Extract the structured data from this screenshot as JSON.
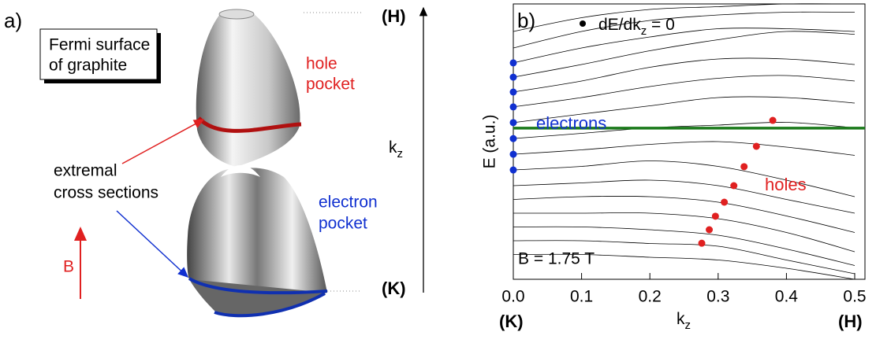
{
  "panel_a": {
    "label": "a)",
    "box_lines": [
      "Fermi surface",
      "of graphite"
    ],
    "hole_lines": [
      "hole",
      "pocket"
    ],
    "electron_lines": [
      "electron",
      "pocket"
    ],
    "cross_lines": [
      "extremal",
      "cross sections"
    ],
    "field": "B",
    "top_label": "(H)",
    "bottom_label": "(K)",
    "axis_label": {
      "main": "k",
      "sub": "z"
    }
  },
  "chart_data": {
    "type": "line",
    "panel_label": "b)",
    "legend_label": {
      "main": "dE/dk",
      "sub": "z",
      "rest": " = 0"
    },
    "legend_color": "#000000",
    "annotation": "B = 1.75 T",
    "y_label": "E (a.u.)",
    "x_label": {
      "main": "k",
      "sub": "z"
    },
    "x_end_labels": [
      "(K)",
      "(H)"
    ],
    "xlim": [
      0,
      0.515
    ],
    "ylim": [
      0,
      1
    ],
    "xticks": [
      {
        "value": 0,
        "label": "0.0"
      },
      0.1,
      0.2,
      0.3,
      0.4,
      0.5
    ],
    "grid": false,
    "line_color": "#000000",
    "hline": {
      "value": 0.549,
      "color": "#1a7a1a"
    },
    "x": [
      0,
      0.1,
      0.2,
      0.3,
      0.4,
      0.5
    ],
    "series": [
      {
        "values": [
          0.9,
          0.95,
          0.98,
          0.99,
          1.0,
          1.0
        ]
      },
      {
        "values": [
          0.84,
          0.9,
          0.94,
          0.96,
          0.97,
          0.97
        ]
      },
      {
        "values": [
          0.786,
          0.84,
          0.88,
          0.91,
          0.91,
          0.9
        ]
      },
      {
        "values": [
          0.734,
          0.78,
          0.83,
          0.87,
          0.9,
          0.89
        ]
      },
      {
        "values": [
          0.68,
          0.72,
          0.77,
          0.8,
          0.8,
          0.78
        ]
      },
      {
        "values": [
          0.626,
          0.66,
          0.7,
          0.73,
          0.74,
          0.72
        ]
      },
      {
        "values": [
          0.569,
          0.6,
          0.63,
          0.66,
          0.66,
          0.64
        ]
      },
      {
        "values": [
          0.511,
          0.53,
          0.55,
          0.56,
          0.57,
          0.55
        ]
      },
      {
        "values": [
          0.454,
          0.47,
          0.49,
          0.5,
          0.48,
          0.45
        ]
      },
      {
        "values": [
          0.397,
          0.41,
          0.43,
          0.41,
          0.36,
          0.3
        ]
      },
      {
        "values": [
          0.34,
          0.35,
          0.36,
          0.34,
          0.29,
          0.24
        ]
      },
      {
        "values": [
          0.29,
          0.3,
          0.3,
          0.28,
          0.23,
          0.17
        ]
      },
      {
        "values": [
          0.24,
          0.24,
          0.24,
          0.22,
          0.17,
          0.1
        ]
      },
      {
        "values": [
          0.19,
          0.19,
          0.18,
          0.16,
          0.11,
          0.05
        ]
      },
      {
        "values": [
          0.14,
          0.14,
          0.13,
          0.12,
          0.07,
          0.02
        ]
      },
      {
        "values": [
          0.09,
          0.09,
          0.08,
          0.07,
          0.04,
          0.0
        ]
      }
    ],
    "points": [
      {
        "name": "electrons",
        "color": "#1030d0",
        "x": [
          0,
          0,
          0,
          0,
          0,
          0,
          0,
          0
        ],
        "values": [
          0.786,
          0.734,
          0.68,
          0.626,
          0.569,
          0.511,
          0.454,
          0.397
        ]
      },
      {
        "name": "holes",
        "color": "#e02020",
        "x": [
          0.38,
          0.356,
          0.338,
          0.323,
          0.309,
          0.296,
          0.287,
          0.276
        ],
        "values": [
          0.577,
          0.483,
          0.409,
          0.34,
          0.28,
          0.229,
          0.18,
          0.131
        ]
      }
    ]
  }
}
